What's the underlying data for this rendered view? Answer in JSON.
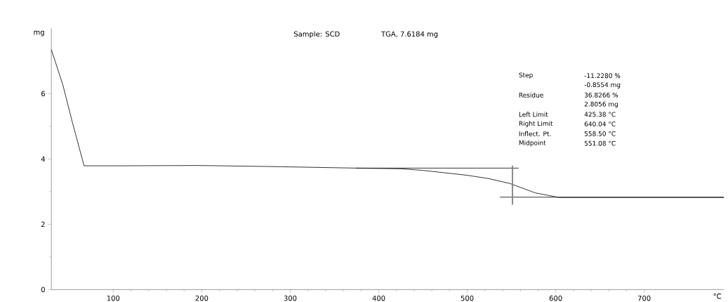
{
  "chart_data": {
    "type": "line",
    "title": "Sample: SCD",
    "subtitle": "TGA, 7.6184 mg",
    "xlabel": "°C",
    "ylabel": "mg",
    "xlim": [
      30,
      790
    ],
    "ylim": [
      0,
      8
    ],
    "xticks": [
      100,
      200,
      300,
      400,
      500,
      600,
      700
    ],
    "yticks": [
      0,
      2,
      4,
      6
    ],
    "grid": false,
    "marker": "none",
    "line_style": "solid",
    "series": [
      {
        "color": "#000000",
        "x": [
          30,
          43,
          54,
          67,
          100,
          196,
          273,
          374,
          425,
          450,
          500,
          524,
          548,
          577,
          604,
          700,
          790
        ],
        "values": [
          7.35,
          6.27,
          5.1,
          3.79,
          3.79,
          3.8,
          3.77,
          3.72,
          3.7,
          3.65,
          3.5,
          3.4,
          3.25,
          2.96,
          2.82,
          2.82,
          2.82
        ]
      },
      {
        "color": "#000000",
        "x": [
          374,
          558
        ],
        "values": [
          3.72,
          3.72
        ]
      },
      {
        "color": "#000000",
        "x": [
          537,
          790
        ],
        "values": [
          2.83,
          2.83
        ]
      },
      {
        "color": "#808080",
        "x": [
          551.08,
          551.08
        ],
        "values": [
          2.6,
          3.8
        ]
      }
    ],
    "annotations": [
      "Step",
      "-11.2280 %",
      "-0.8554 mg",
      "Residue",
      "36.8266 %",
      "2.8056 mg",
      "Left Limit",
      "425.38 °C",
      "Right Limit",
      "640.04 °C",
      "Inflect. Pt.",
      "558.50 °C",
      "Midpoint",
      "551.08 °C"
    ]
  }
}
